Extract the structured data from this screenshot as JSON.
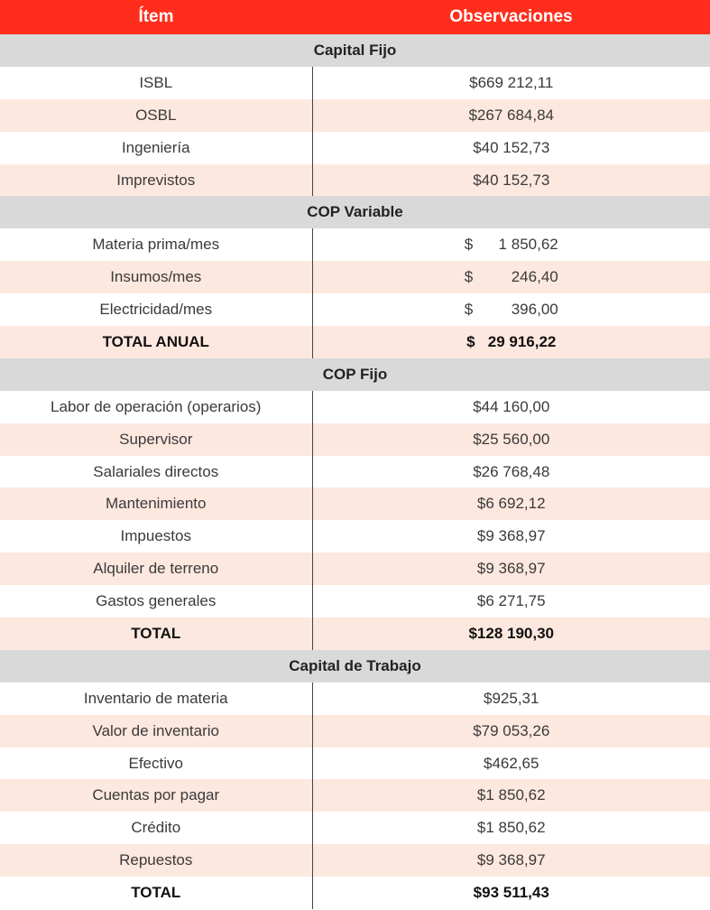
{
  "table": {
    "header": [
      "Ítem",
      "Observaciones"
    ],
    "sections": [
      {
        "title": "Capital Fijo",
        "rows": [
          [
            "ISBL",
            "$669 212,11"
          ],
          [
            "OSBL",
            "$267 684,84"
          ],
          [
            "Ingeniería",
            "$40 152,73"
          ],
          [
            "Imprevistos",
            "$40 152,73"
          ]
        ]
      },
      {
        "title": "COP Variable",
        "rows": [
          [
            "Materia prima/mes",
            "$      1 850,62"
          ],
          [
            "Insumos/mes",
            "$         246,40"
          ],
          [
            "Electricidad/mes",
            "$         396,00"
          ]
        ],
        "total": [
          "TOTAL ANUAL",
          "$   29 916,22"
        ]
      },
      {
        "title": "COP Fijo",
        "rows": [
          [
            "Labor de operación (operarios)",
            "$44 160,00"
          ],
          [
            "Supervisor",
            "$25 560,00"
          ],
          [
            "Salariales directos",
            "$26 768,48"
          ],
          [
            "Mantenimiento",
            "$6 692,12"
          ],
          [
            "Impuestos",
            "$9 368,97"
          ],
          [
            "Alquiler de terreno",
            "$9 368,97"
          ],
          [
            "Gastos generales",
            "$6 271,75"
          ]
        ],
        "total": [
          "TOTAL",
          "$128 190,30"
        ]
      },
      {
        "title": "Capital de Trabajo",
        "rows": [
          [
            "Inventario de materia",
            "$925,31"
          ],
          [
            "Valor de inventario",
            "$79 053,26"
          ],
          [
            "Efectivo",
            "$462,65"
          ],
          [
            "Cuentas por pagar",
            "$1 850,62"
          ],
          [
            "Crédito",
            "$1 850,62"
          ],
          [
            "Repuestos",
            "$9 368,97"
          ]
        ],
        "total": [
          "TOTAL",
          "$93 511,43"
        ]
      }
    ]
  }
}
